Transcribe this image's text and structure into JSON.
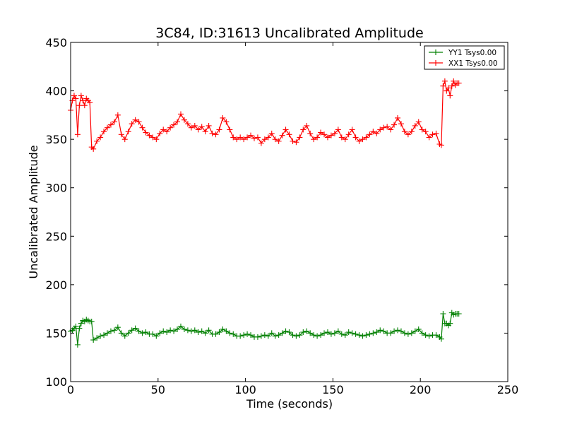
{
  "chart_data": {
    "type": "line",
    "title": "3C84, ID:31613 Uncalibrated Amplitude",
    "xlabel": "Time (seconds)",
    "ylabel": "Uncalibrated Amplitude",
    "xlim": [
      0,
      250
    ],
    "ylim": [
      100,
      450
    ],
    "xticks": [
      "0",
      "50",
      "100",
      "150",
      "200",
      "250"
    ],
    "yticks": [
      "100",
      "150",
      "200",
      "250",
      "300",
      "350",
      "400",
      "450"
    ],
    "grid": false,
    "legend_position": "top-right",
    "marker": "plus",
    "series": [
      {
        "name": "YY1 Tsys0.00",
        "color": "#008000",
        "x": [
          0,
          1,
          2,
          3,
          4,
          5,
          6,
          7,
          8,
          9,
          10,
          11,
          12,
          13,
          15,
          17,
          19,
          21,
          23,
          25,
          27,
          29,
          31,
          33,
          35,
          37,
          39,
          41,
          43,
          45,
          47,
          49,
          51,
          53,
          55,
          57,
          59,
          61,
          63,
          65,
          67,
          69,
          71,
          73,
          75,
          77,
          79,
          81,
          83,
          85,
          87,
          89,
          91,
          93,
          95,
          97,
          99,
          101,
          103,
          105,
          107,
          109,
          111,
          113,
          115,
          117,
          119,
          121,
          123,
          125,
          127,
          129,
          131,
          133,
          135,
          137,
          139,
          141,
          143,
          145,
          147,
          149,
          151,
          153,
          155,
          157,
          159,
          161,
          163,
          165,
          167,
          169,
          171,
          173,
          175,
          177,
          179,
          181,
          183,
          185,
          187,
          189,
          191,
          193,
          195,
          197,
          199,
          201,
          203,
          205,
          207,
          209,
          211,
          212,
          213,
          214,
          215,
          216,
          217,
          218,
          219,
          220,
          221,
          222
        ],
        "y": [
          152,
          153,
          155,
          157,
          138,
          155,
          160,
          163,
          162,
          164,
          163,
          162,
          162,
          143,
          145,
          147,
          148,
          150,
          152,
          153,
          156,
          150,
          147,
          150,
          153,
          155,
          152,
          150,
          151,
          149,
          149,
          147,
          150,
          152,
          151,
          153,
          152,
          154,
          157,
          154,
          153,
          152,
          153,
          151,
          152,
          150,
          153,
          149,
          149,
          151,
          154,
          152,
          150,
          149,
          147,
          147,
          148,
          149,
          148,
          146,
          146,
          147,
          148,
          147,
          150,
          147,
          148,
          150,
          152,
          151,
          148,
          147,
          148,
          151,
          152,
          150,
          148,
          147,
          148,
          150,
          151,
          149,
          150,
          152,
          149,
          148,
          151,
          150,
          149,
          148,
          147,
          148,
          149,
          150,
          151,
          153,
          152,
          150,
          150,
          152,
          153,
          152,
          150,
          149,
          150,
          152,
          154,
          150,
          148,
          147,
          148,
          148,
          146,
          144,
          170,
          160,
          160,
          158,
          160,
          171,
          169,
          170,
          170,
          170
        ]
      },
      {
        "name": "XX1 Tsys0.00",
        "color": "#ff0000",
        "x": [
          0,
          1,
          2,
          3,
          4,
          5,
          6,
          7,
          8,
          9,
          10,
          11,
          12,
          13,
          15,
          17,
          19,
          21,
          23,
          25,
          27,
          29,
          31,
          33,
          35,
          37,
          39,
          41,
          43,
          45,
          47,
          49,
          51,
          53,
          55,
          57,
          59,
          61,
          63,
          65,
          67,
          69,
          71,
          73,
          75,
          77,
          79,
          81,
          83,
          85,
          87,
          89,
          91,
          93,
          95,
          97,
          99,
          101,
          103,
          105,
          107,
          109,
          111,
          113,
          115,
          117,
          119,
          121,
          123,
          125,
          127,
          129,
          131,
          133,
          135,
          137,
          139,
          141,
          143,
          145,
          147,
          149,
          151,
          153,
          155,
          157,
          159,
          161,
          163,
          165,
          167,
          169,
          171,
          173,
          175,
          177,
          179,
          181,
          183,
          185,
          187,
          189,
          191,
          193,
          195,
          197,
          199,
          201,
          203,
          205,
          207,
          209,
          211,
          212,
          213,
          214,
          215,
          216,
          217,
          218,
          219,
          220,
          221,
          222
        ],
        "y": [
          380,
          390,
          395,
          392,
          355,
          385,
          395,
          390,
          385,
          392,
          390,
          388,
          342,
          340,
          348,
          352,
          358,
          362,
          365,
          368,
          375,
          355,
          350,
          358,
          366,
          370,
          368,
          362,
          357,
          354,
          352,
          350,
          356,
          360,
          358,
          362,
          365,
          368,
          376,
          370,
          366,
          362,
          364,
          360,
          363,
          358,
          364,
          356,
          355,
          360,
          372,
          368,
          360,
          352,
          350,
          352,
          350,
          352,
          354,
          351,
          352,
          346,
          350,
          352,
          356,
          350,
          348,
          354,
          360,
          355,
          348,
          347,
          352,
          360,
          364,
          356,
          350,
          352,
          357,
          355,
          352,
          354,
          356,
          360,
          352,
          350,
          355,
          360,
          352,
          348,
          350,
          352,
          355,
          358,
          356,
          360,
          362,
          363,
          360,
          365,
          372,
          366,
          358,
          355,
          358,
          364,
          368,
          360,
          358,
          352,
          355,
          356,
          345,
          344,
          405,
          410,
          400,
          403,
          395,
          405,
          410,
          406,
          408,
          408
        ]
      }
    ]
  }
}
